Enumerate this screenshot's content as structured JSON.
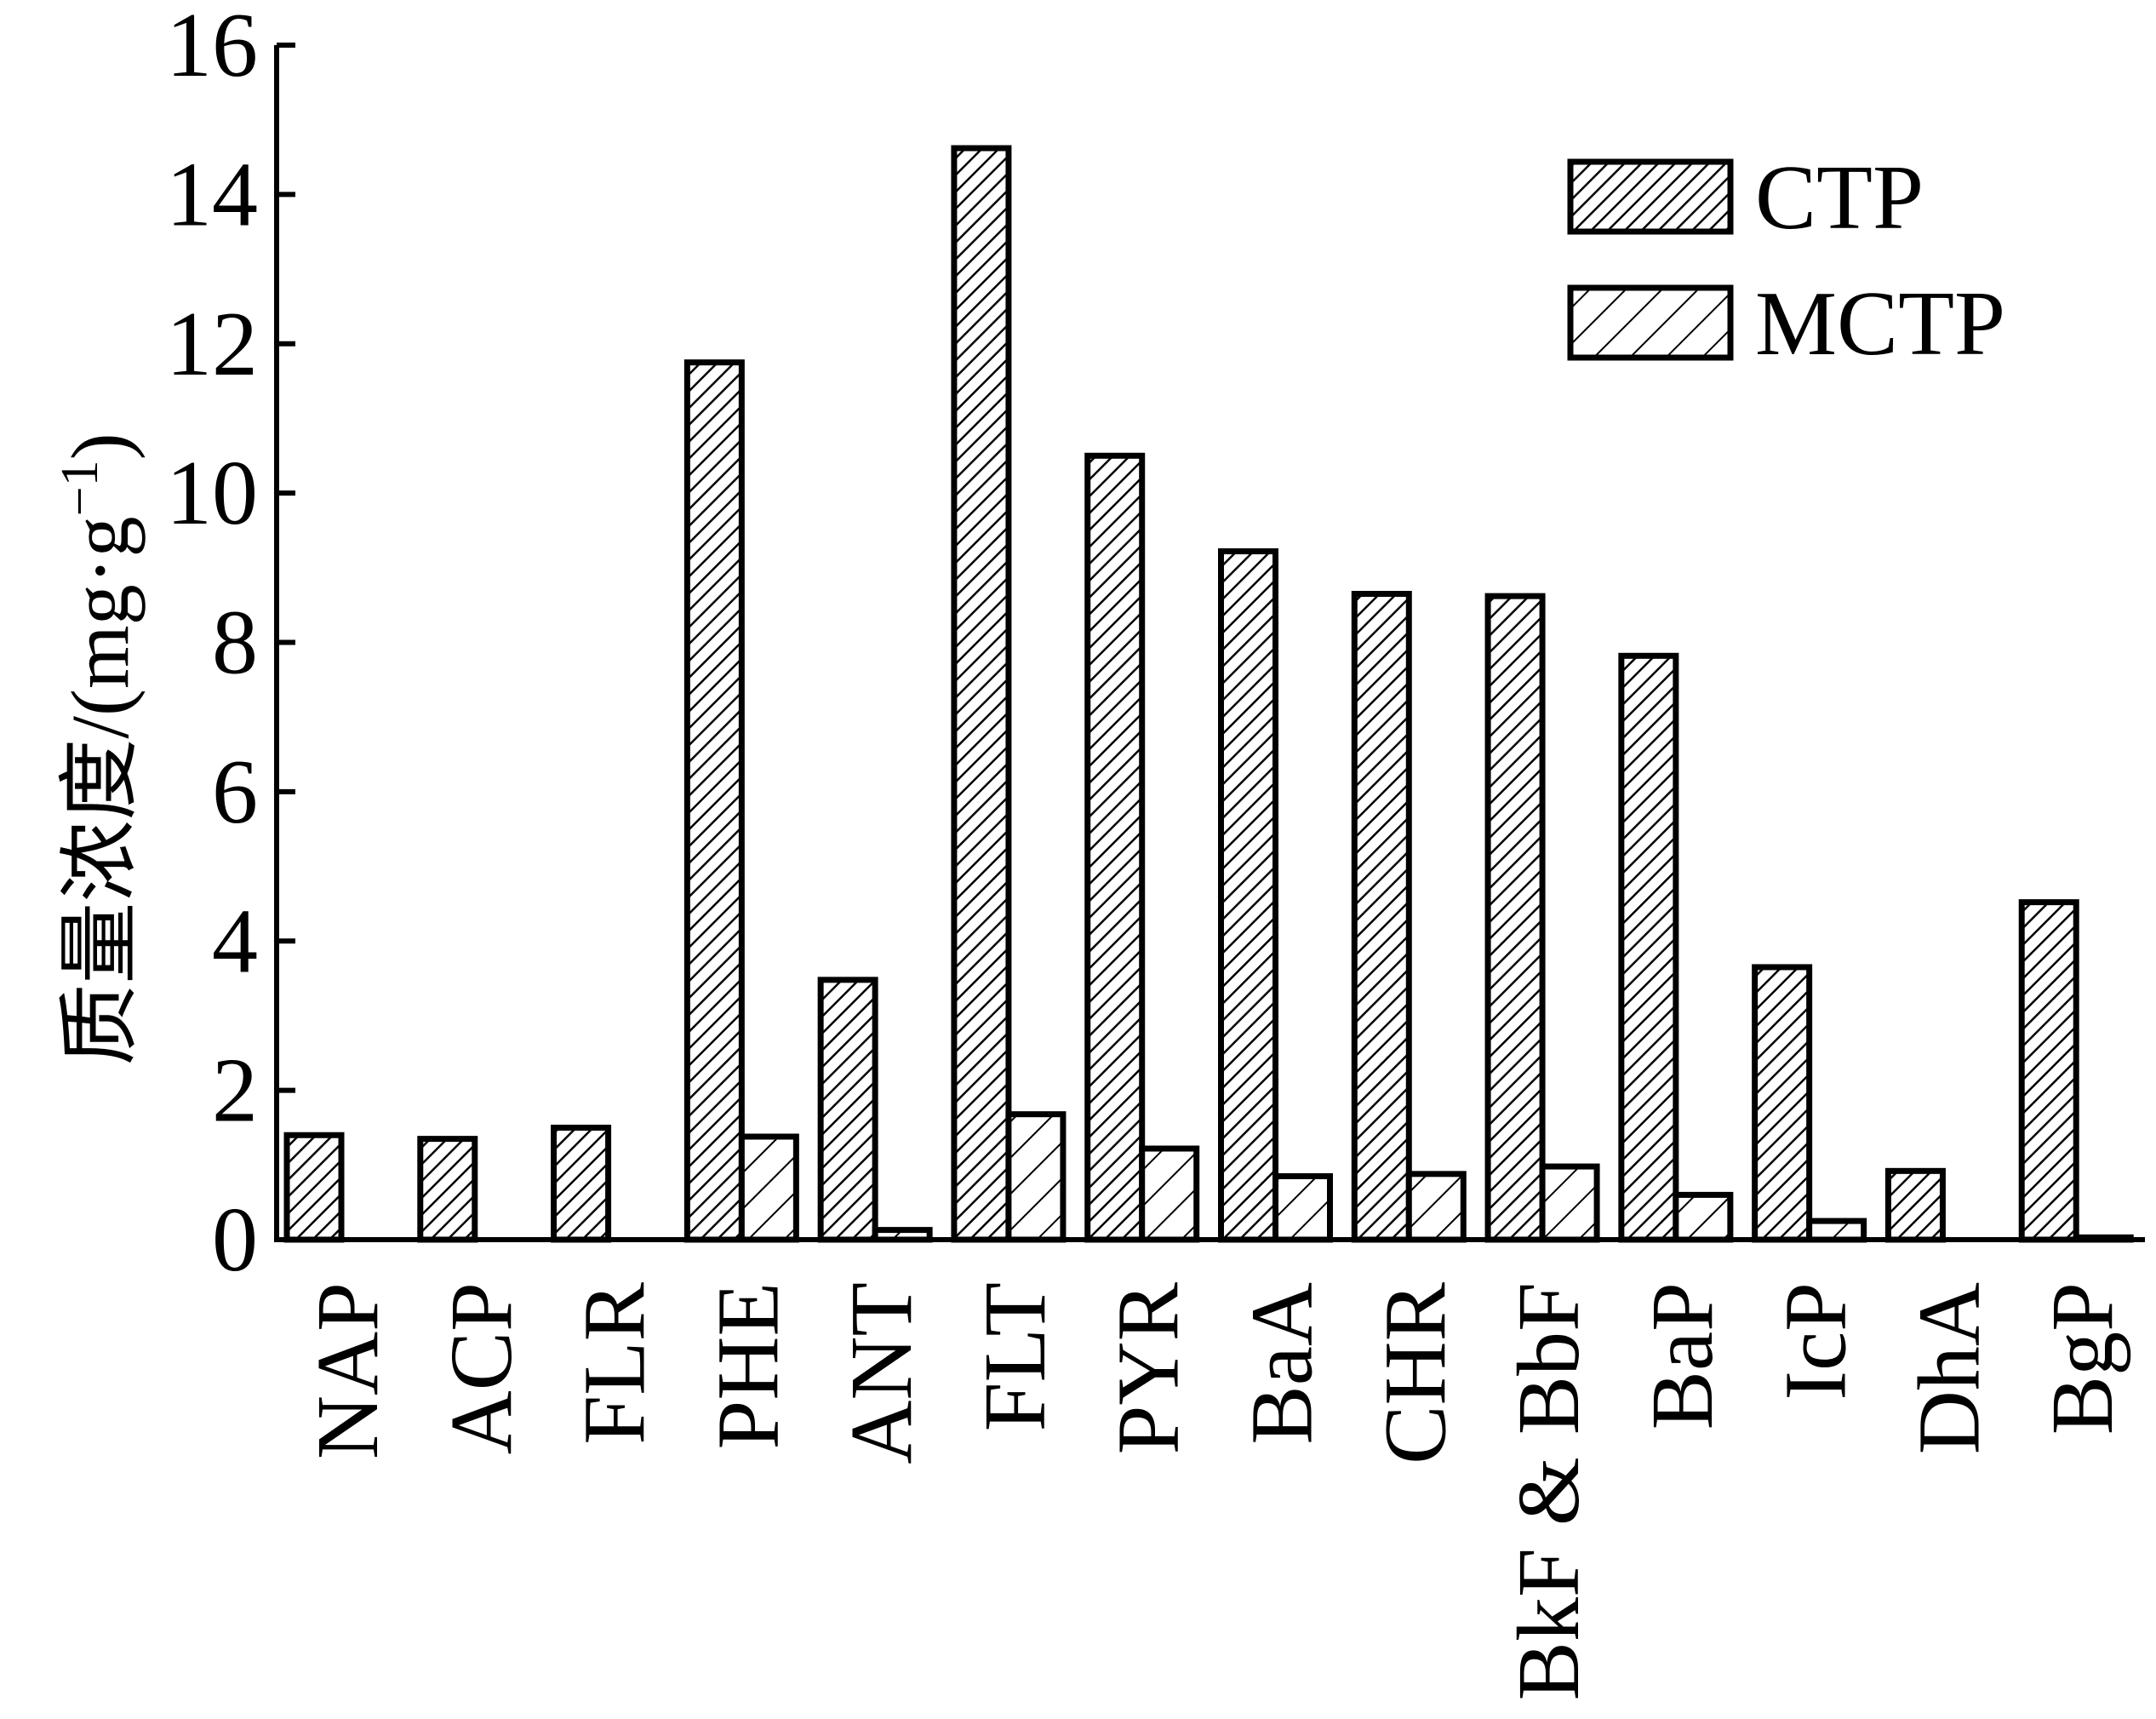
{
  "chart_data": {
    "type": "bar",
    "ylabel": "质量浓度/(mg·g",
    "ylabel_superscript": "−1",
    "ylabel_close": ")",
    "ylim": [
      0,
      16
    ],
    "yticks": [
      0,
      2,
      4,
      6,
      8,
      10,
      12,
      14,
      16
    ],
    "categories": [
      "NAP",
      "ACP",
      "FLR",
      "PHE",
      "ANT",
      "FLT",
      "PYR",
      "BaA",
      "CHR",
      "BkF & BbF",
      "BaP",
      "IcP",
      "DhA",
      "BgP"
    ],
    "series": [
      {
        "name": "CTP",
        "values": [
          1.4,
          1.35,
          1.5,
          11.75,
          3.48,
          14.62,
          10.5,
          9.22,
          8.65,
          8.62,
          7.82,
          3.65,
          0.92,
          4.52
        ],
        "pattern": "dense-hatch"
      },
      {
        "name": "MCTP",
        "values": [
          0,
          0,
          0,
          1.38,
          0.13,
          1.68,
          1.22,
          0.85,
          0.88,
          0.98,
          0.6,
          0.25,
          0,
          0.03
        ],
        "pattern": "sparse-hatch"
      }
    ],
    "legend_position": "top-right",
    "grid": false,
    "colors": {
      "bar_stroke": "#000000",
      "hatch": "#000000",
      "background": "#ffffff"
    }
  }
}
